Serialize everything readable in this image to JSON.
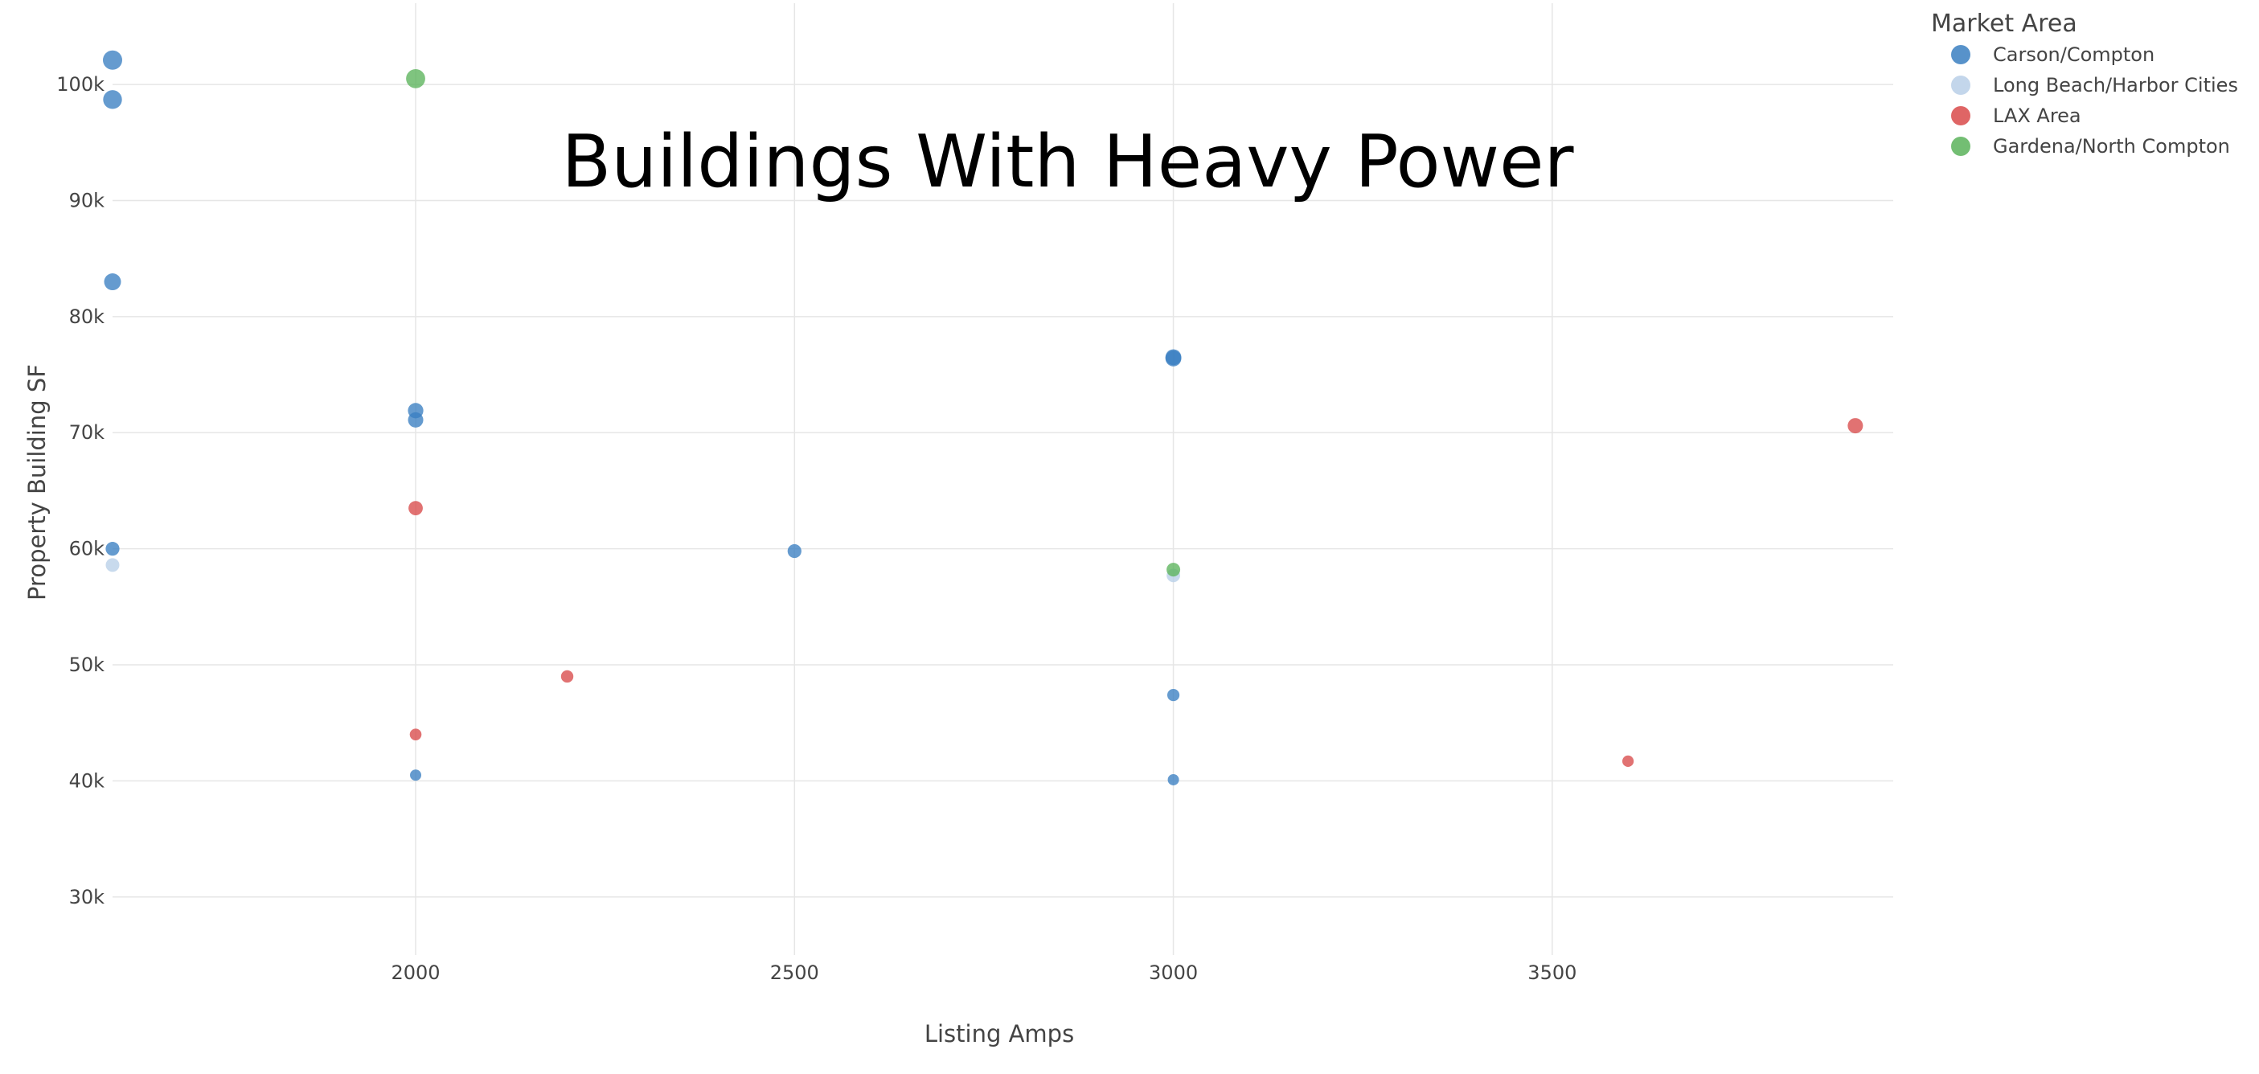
{
  "chart_data": {
    "type": "scatter",
    "title": "Buildings With Heavy Power",
    "xlabel": "Listing Amps",
    "ylabel": "Property Building SF",
    "xlim": [
      1600,
      3950
    ],
    "ylim": [
      25000,
      107000
    ],
    "x_ticks": [
      2000,
      2500,
      3000,
      3500
    ],
    "x_tick_labels": [
      "2000",
      "2500",
      "3000",
      "3500"
    ],
    "y_ticks": [
      30000,
      40000,
      50000,
      60000,
      70000,
      80000,
      90000,
      100000
    ],
    "y_tick_labels": [
      "30k",
      "40k",
      "50k",
      "60k",
      "70k",
      "80k",
      "90k",
      "100k"
    ],
    "grid": true,
    "legend": {
      "title": "Market Area",
      "placement": "top-right"
    },
    "series": [
      {
        "name": "Carson/Compton",
        "color": "#3a7fc1",
        "points": [
          {
            "x": 1600,
            "y": 102100
          },
          {
            "x": 1600,
            "y": 98700
          },
          {
            "x": 1600,
            "y": 83000
          },
          {
            "x": 1600,
            "y": 60000
          },
          {
            "x": 2000,
            "y": 71900
          },
          {
            "x": 2000,
            "y": 71100
          },
          {
            "x": 2000,
            "y": 40500
          },
          {
            "x": 2500,
            "y": 59800
          },
          {
            "x": 3000,
            "y": 76500
          },
          {
            "x": 3000,
            "y": 76400
          },
          {
            "x": 3000,
            "y": 47400
          },
          {
            "x": 3000,
            "y": 40100
          }
        ]
      },
      {
        "name": "Long Beach/Harbor Cities",
        "color": "#b8cfe8",
        "points": [
          {
            "x": 1600,
            "y": 58600
          },
          {
            "x": 3000,
            "y": 57700
          }
        ]
      },
      {
        "name": "LAX Area",
        "color": "#d94a4a",
        "points": [
          {
            "x": 2000,
            "y": 63500
          },
          {
            "x": 2000,
            "y": 44000
          },
          {
            "x": 2200,
            "y": 49000
          },
          {
            "x": 3600,
            "y": 41700
          },
          {
            "x": 3900,
            "y": 70600
          }
        ]
      },
      {
        "name": "Gardena/North Compton",
        "color": "#5bb35b",
        "points": [
          {
            "x": 2000,
            "y": 100500
          },
          {
            "x": 3000,
            "y": 58200
          }
        ]
      }
    ]
  }
}
